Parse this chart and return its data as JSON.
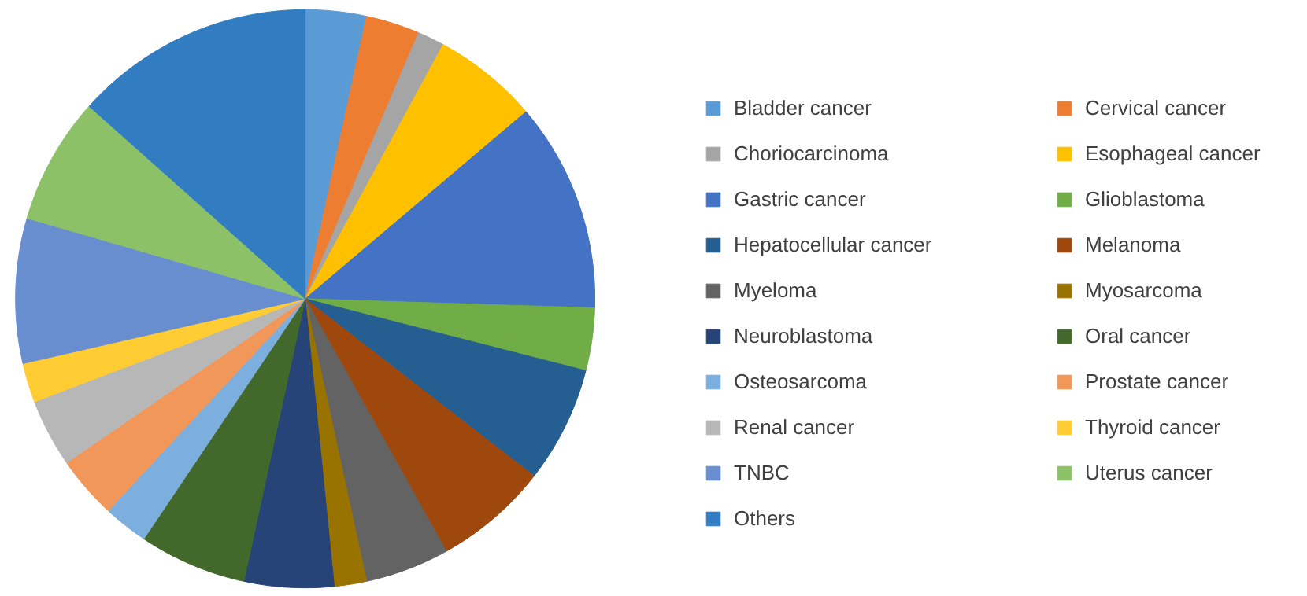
{
  "chart_data": {
    "type": "pie",
    "legend": "right",
    "categories": [
      "Bladder cancer",
      "Cervical cancer",
      "Choriocarcinoma",
      "Esophageal cancer",
      "Gastric cancer",
      "Glioblastoma",
      "Hepatocellular cancer",
      "Melanoma",
      "Myeloma",
      "Myosarcoma",
      "Neuroblastoma",
      "Oral cancer",
      "Osteosarcoma",
      "Prostate cancer",
      "Renal cancer",
      "Thyroid cancer",
      "TNBC",
      "Uterus cancer",
      "Others"
    ],
    "values": [
      3.4,
      3.0,
      1.5,
      5.9,
      11.7,
      3.5,
      6.5,
      6.4,
      4.7,
      1.8,
      5.0,
      6.0,
      2.5,
      3.5,
      3.8,
      2.2,
      8.1,
      7.1,
      13.4
    ],
    "colors": [
      "#5b9bd5",
      "#ed7d31",
      "#a5a5a5",
      "#ffc000",
      "#4472c4",
      "#70ad47",
      "#255e91",
      "#9e480e",
      "#636363",
      "#997300",
      "#264478",
      "#43682b",
      "#7cafdd",
      "#f1975a",
      "#b7b7b7",
      "#ffcd33",
      "#698ed0",
      "#8cc168",
      "#327dc2"
    ]
  }
}
